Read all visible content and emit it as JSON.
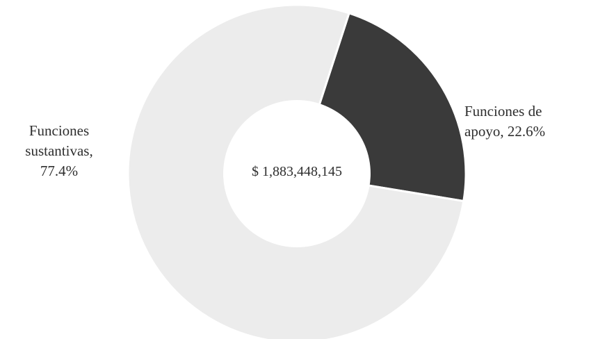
{
  "chart_data": {
    "type": "pie",
    "variant": "donut",
    "center_label": "$ 1,883,448,145",
    "slices": [
      {
        "name": "Funciones de apoyo",
        "value": 22.6,
        "label_lines": [
          "Funciones de",
          "apoyo, 22.6%"
        ],
        "color": "#3a3a3a"
      },
      {
        "name": "Funciones sustantivas",
        "value": 77.4,
        "label_lines": [
          "Funciones",
          "sustantivas,",
          "77.4%"
        ],
        "color": "#ececec"
      }
    ],
    "legend": "none"
  }
}
